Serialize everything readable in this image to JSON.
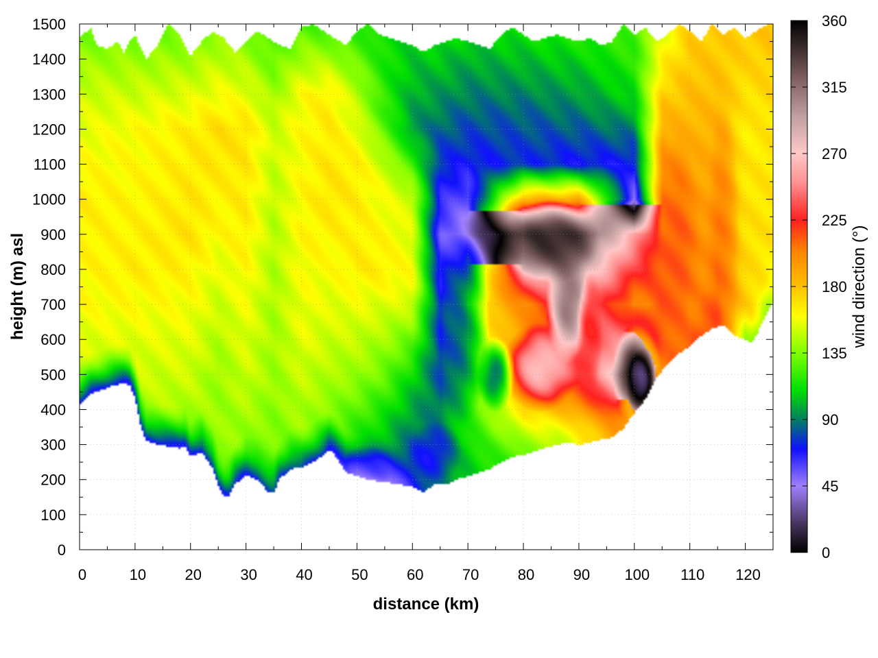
{
  "chart_data": {
    "type": "heatmap",
    "title": "",
    "xlabel": "distance (km)",
    "ylabel": "height (m) asl",
    "colorbar_label": "wind direction (°)",
    "xlim": [
      0,
      125
    ],
    "ylim": [
      0,
      1500
    ],
    "clim": [
      0,
      360
    ],
    "grid": true,
    "x_ticks": [
      0,
      10,
      20,
      30,
      40,
      50,
      60,
      70,
      80,
      90,
      100,
      110,
      120
    ],
    "y_ticks": [
      0,
      100,
      200,
      300,
      400,
      500,
      600,
      700,
      800,
      900,
      1000,
      1100,
      1200,
      1300,
      1400,
      1500
    ],
    "colorbar_ticks": [
      0,
      45,
      90,
      135,
      180,
      225,
      270,
      315,
      360
    ],
    "colormap": [
      {
        "v": 0,
        "c": "#000000"
      },
      {
        "v": 20,
        "c": "#4a3560"
      },
      {
        "v": 45,
        "c": "#a080ff"
      },
      {
        "v": 70,
        "c": "#1010ff"
      },
      {
        "v": 90,
        "c": "#008060"
      },
      {
        "v": 110,
        "c": "#00e000"
      },
      {
        "v": 135,
        "c": "#80ff00"
      },
      {
        "v": 160,
        "c": "#ffff00"
      },
      {
        "v": 180,
        "c": "#ffc000"
      },
      {
        "v": 205,
        "c": "#ff8000"
      },
      {
        "v": 225,
        "c": "#ff2020"
      },
      {
        "v": 250,
        "c": "#ff9090"
      },
      {
        "v": 270,
        "c": "#ffc8c8"
      },
      {
        "v": 295,
        "c": "#c0a0a0"
      },
      {
        "v": 320,
        "c": "#806060"
      },
      {
        "v": 360,
        "c": "#000000"
      }
    ],
    "terrain": [
      [
        0,
        415
      ],
      [
        2,
        445
      ],
      [
        4,
        455
      ],
      [
        6,
        468
      ],
      [
        8,
        475
      ],
      [
        9,
        470
      ],
      [
        10,
        430
      ],
      [
        11,
        350
      ],
      [
        12,
        310
      ],
      [
        14,
        300
      ],
      [
        16,
        295
      ],
      [
        18,
        290
      ],
      [
        19,
        295
      ],
      [
        20,
        265
      ],
      [
        22,
        280
      ],
      [
        24,
        230
      ],
      [
        25,
        180
      ],
      [
        26,
        155
      ],
      [
        27,
        155
      ],
      [
        28,
        185
      ],
      [
        29,
        200
      ],
      [
        30,
        215
      ],
      [
        32,
        200
      ],
      [
        34,
        165
      ],
      [
        35,
        160
      ],
      [
        36,
        200
      ],
      [
        38,
        230
      ],
      [
        40,
        235
      ],
      [
        42,
        250
      ],
      [
        44,
        270
      ],
      [
        45,
        285
      ],
      [
        46,
        270
      ],
      [
        48,
        220
      ],
      [
        50,
        210
      ],
      [
        52,
        200
      ],
      [
        54,
        195
      ],
      [
        56,
        190
      ],
      [
        58,
        185
      ],
      [
        60,
        180
      ],
      [
        61,
        170
      ],
      [
        62,
        165
      ],
      [
        64,
        185
      ],
      [
        66,
        185
      ],
      [
        68,
        200
      ],
      [
        70,
        210
      ],
      [
        72,
        220
      ],
      [
        74,
        230
      ],
      [
        76,
        250
      ],
      [
        78,
        265
      ],
      [
        80,
        270
      ],
      [
        82,
        280
      ],
      [
        84,
        290
      ],
      [
        86,
        300
      ],
      [
        88,
        305
      ],
      [
        90,
        300
      ],
      [
        92,
        305
      ],
      [
        94,
        315
      ],
      [
        96,
        320
      ],
      [
        98,
        345
      ],
      [
        100,
        390
      ],
      [
        102,
        430
      ],
      [
        104,
        490
      ],
      [
        106,
        530
      ],
      [
        108,
        560
      ],
      [
        110,
        580
      ],
      [
        112,
        610
      ],
      [
        114,
        630
      ],
      [
        116,
        640
      ],
      [
        118,
        610
      ],
      [
        120,
        600
      ],
      [
        121,
        590
      ],
      [
        122,
        610
      ],
      [
        124,
        680
      ],
      [
        125,
        710
      ]
    ],
    "top": [
      [
        0,
        1460
      ],
      [
        2,
        1490
      ],
      [
        3,
        1440
      ],
      [
        5,
        1430
      ],
      [
        7,
        1450
      ],
      [
        8,
        1420
      ],
      [
        9,
        1450
      ],
      [
        10,
        1470
      ],
      [
        12,
        1400
      ],
      [
        14,
        1440
      ],
      [
        16,
        1500
      ],
      [
        18,
        1470
      ],
      [
        20,
        1410
      ],
      [
        22,
        1450
      ],
      [
        24,
        1480
      ],
      [
        26,
        1460
      ],
      [
        28,
        1420
      ],
      [
        30,
        1450
      ],
      [
        32,
        1480
      ],
      [
        34,
        1460
      ],
      [
        36,
        1440
      ],
      [
        38,
        1430
      ],
      [
        40,
        1490
      ],
      [
        42,
        1500
      ],
      [
        44,
        1480
      ],
      [
        46,
        1460
      ],
      [
        48,
        1440
      ],
      [
        50,
        1480
      ],
      [
        52,
        1500
      ],
      [
        54,
        1470
      ],
      [
        56,
        1460
      ],
      [
        58,
        1450
      ],
      [
        60,
        1440
      ],
      [
        62,
        1420
      ],
      [
        64,
        1440
      ],
      [
        66,
        1450
      ],
      [
        68,
        1460
      ],
      [
        70,
        1450
      ],
      [
        72,
        1440
      ],
      [
        74,
        1430
      ],
      [
        76,
        1470
      ],
      [
        78,
        1490
      ],
      [
        80,
        1470
      ],
      [
        82,
        1450
      ],
      [
        84,
        1460
      ],
      [
        86,
        1470
      ],
      [
        88,
        1460
      ],
      [
        90,
        1450
      ],
      [
        92,
        1460
      ],
      [
        94,
        1440
      ],
      [
        96,
        1450
      ],
      [
        98,
        1500
      ],
      [
        100,
        1470
      ],
      [
        102,
        1490
      ],
      [
        104,
        1450
      ],
      [
        106,
        1470
      ],
      [
        108,
        1500
      ],
      [
        110,
        1480
      ],
      [
        112,
        1450
      ],
      [
        114,
        1500
      ],
      [
        116,
        1470
      ],
      [
        118,
        1490
      ],
      [
        120,
        1460
      ],
      [
        122,
        1480
      ],
      [
        124,
        1500
      ],
      [
        125,
        1500
      ]
    ],
    "surface_flow": [
      [
        0,
        55
      ],
      [
        10,
        52
      ],
      [
        20,
        55
      ],
      [
        30,
        60
      ],
      [
        40,
        70
      ],
      [
        47,
        50
      ],
      [
        52,
        30
      ],
      [
        56,
        35
      ],
      [
        60,
        65
      ],
      [
        64,
        85
      ],
      [
        68,
        100
      ],
      [
        72,
        110
      ],
      [
        78,
        120
      ],
      [
        82,
        135
      ],
      [
        88,
        150
      ],
      [
        92,
        170
      ],
      [
        96,
        190
      ],
      [
        100,
        200
      ],
      [
        105,
        205
      ],
      [
        110,
        215
      ],
      [
        115,
        215
      ],
      [
        120,
        130
      ],
      [
        125,
        140
      ]
    ],
    "base_profile": [
      [
        0,
        [
          [
            0,
            100
          ],
          [
            150,
            120
          ],
          [
            350,
            140
          ],
          [
            700,
            160
          ],
          [
            1000,
            165
          ],
          [
            1300,
            150
          ],
          [
            1500,
            130
          ]
        ]
      ],
      [
        10,
        [
          [
            0,
            105
          ],
          [
            150,
            125
          ],
          [
            400,
            145
          ],
          [
            800,
            165
          ],
          [
            1200,
            160
          ],
          [
            1500,
            130
          ]
        ]
      ],
      [
        20,
        [
          [
            0,
            115
          ],
          [
            200,
            130
          ],
          [
            500,
            150
          ],
          [
            900,
            168
          ],
          [
            1200,
            165
          ],
          [
            1500,
            130
          ]
        ]
      ],
      [
        25,
        [
          [
            0,
            120
          ],
          [
            200,
            140
          ],
          [
            500,
            140
          ],
          [
            900,
            160
          ],
          [
            1200,
            170
          ],
          [
            1500,
            135
          ]
        ]
      ],
      [
        30,
        [
          [
            0,
            112
          ],
          [
            200,
            130
          ],
          [
            500,
            150
          ],
          [
            900,
            165
          ],
          [
            1200,
            168
          ],
          [
            1500,
            130
          ]
        ]
      ],
      [
        35,
        [
          [
            0,
            110
          ],
          [
            200,
            130
          ],
          [
            500,
            140
          ],
          [
            900,
            145
          ],
          [
            1200,
            150
          ],
          [
            1500,
            120
          ]
        ]
      ],
      [
        40,
        [
          [
            0,
            115
          ],
          [
            250,
            135
          ],
          [
            600,
            155
          ],
          [
            900,
            162
          ],
          [
            1300,
            160
          ],
          [
            1500,
            125
          ]
        ]
      ],
      [
        45,
        [
          [
            0,
            105
          ],
          [
            300,
            130
          ],
          [
            600,
            150
          ],
          [
            1000,
            168
          ],
          [
            1300,
            165
          ],
          [
            1500,
            120
          ]
        ]
      ],
      [
        50,
        [
          [
            0,
            80
          ],
          [
            280,
            110
          ],
          [
            500,
            140
          ],
          [
            800,
            165
          ],
          [
            1100,
            165
          ],
          [
            1300,
            145
          ],
          [
            1500,
            115
          ]
        ]
      ],
      [
        55,
        [
          [
            0,
            75
          ],
          [
            300,
            100
          ],
          [
            500,
            130
          ],
          [
            800,
            165
          ],
          [
            1050,
            155
          ],
          [
            1250,
            120
          ],
          [
            1500,
            110
          ]
        ]
      ],
      [
        60,
        [
          [
            0,
            70
          ],
          [
            300,
            85
          ],
          [
            500,
            110
          ],
          [
            750,
            160
          ],
          [
            1000,
            150
          ],
          [
            1200,
            95
          ],
          [
            1500,
            110
          ]
        ]
      ],
      [
        65,
        [
          [
            0,
            80
          ],
          [
            300,
            95
          ],
          [
            500,
            80
          ],
          [
            700,
            75
          ],
          [
            900,
            55
          ],
          [
            1100,
            75
          ],
          [
            1250,
            90
          ],
          [
            1500,
            115
          ]
        ]
      ],
      [
        70,
        [
          [
            0,
            95
          ],
          [
            300,
            110
          ],
          [
            500,
            130
          ],
          [
            700,
            165
          ],
          [
            900,
            40
          ],
          [
            1100,
            70
          ],
          [
            1250,
            85
          ],
          [
            1500,
            110
          ]
        ]
      ],
      [
        80,
        [
          [
            0,
            110
          ],
          [
            300,
            150
          ],
          [
            500,
            185
          ],
          [
            700,
            200
          ],
          [
            900,
            330
          ],
          [
            1000,
            185
          ],
          [
            1100,
            75
          ],
          [
            1250,
            85
          ],
          [
            1500,
            115
          ]
        ]
      ],
      [
        90,
        [
          [
            0,
            120
          ],
          [
            300,
            160
          ],
          [
            500,
            230
          ],
          [
            700,
            250
          ],
          [
            900,
            330
          ],
          [
            1000,
            190
          ],
          [
            1100,
            70
          ],
          [
            1250,
            90
          ],
          [
            1500,
            120
          ]
        ]
      ],
      [
        100,
        [
          [
            0,
            130
          ],
          [
            320,
            200
          ],
          [
            500,
            300
          ],
          [
            700,
            200
          ],
          [
            900,
            260
          ],
          [
            1000,
            50
          ],
          [
            1100,
            70
          ],
          [
            1300,
            110
          ],
          [
            1500,
            125
          ]
        ]
      ],
      [
        105,
        [
          [
            0,
            160
          ],
          [
            500,
            210
          ],
          [
            700,
            215
          ],
          [
            900,
            210
          ],
          [
            1100,
            200
          ],
          [
            1300,
            175
          ],
          [
            1500,
            150
          ]
        ]
      ],
      [
        110,
        [
          [
            0,
            180
          ],
          [
            500,
            200
          ],
          [
            700,
            200
          ],
          [
            900,
            200
          ],
          [
            1100,
            190
          ],
          [
            1300,
            180
          ],
          [
            1500,
            175
          ]
        ]
      ],
      [
        115,
        [
          [
            0,
            185
          ],
          [
            600,
            225
          ],
          [
            800,
            200
          ],
          [
            1000,
            190
          ],
          [
            1200,
            185
          ],
          [
            1500,
            175
          ]
        ]
      ],
      [
        120,
        [
          [
            0,
            185
          ],
          [
            600,
            180
          ],
          [
            800,
            172
          ],
          [
            1000,
            168
          ],
          [
            1200,
            165
          ],
          [
            1500,
            178
          ]
        ]
      ],
      [
        125,
        [
          [
            0,
            180
          ],
          [
            700,
            160
          ],
          [
            900,
            168
          ],
          [
            1200,
            168
          ],
          [
            1500,
            180
          ]
        ]
      ]
    ],
    "features": [
      {
        "x": 83,
        "y": 520,
        "rx": 7,
        "ry": 130,
        "v": 275,
        "w": 0.9
      },
      {
        "x": 88,
        "y": 700,
        "rx": 4,
        "ry": 170,
        "v": 320,
        "w": 0.9
      },
      {
        "x": 85,
        "y": 880,
        "rx": 9,
        "ry": 120,
        "v": 345,
        "w": 0.9
      },
      {
        "x": 92,
        "y": 620,
        "rx": 2.5,
        "ry": 180,
        "v": 225,
        "w": 0.9
      },
      {
        "x": 101.5,
        "y": 470,
        "rx": 3,
        "ry": 110,
        "v": 350,
        "w": 0.95
      },
      {
        "x": 100.5,
        "y": 500,
        "rx": 4.5,
        "ry": 150,
        "v": 60,
        "w": 0.55
      },
      {
        "x": 108,
        "y": 850,
        "rx": 4,
        "ry": 350,
        "v": 215,
        "w": 0.8
      },
      {
        "x": 116,
        "y": 900,
        "rx": 3,
        "ry": 400,
        "v": 215,
        "w": 0.6
      },
      {
        "x": 69,
        "y": 650,
        "rx": 5,
        "ry": 300,
        "v": 60,
        "w": 0.65
      },
      {
        "x": 75,
        "y": 500,
        "rx": 3.5,
        "ry": 110,
        "v": 40,
        "w": 0.6
      },
      {
        "x": 64,
        "y": 280,
        "rx": 5,
        "ry": 90,
        "v": 50,
        "w": 0.5
      },
      {
        "x": 52,
        "y": 240,
        "rx": 5,
        "ry": 60,
        "v": 55,
        "w": 0.6
      }
    ]
  }
}
